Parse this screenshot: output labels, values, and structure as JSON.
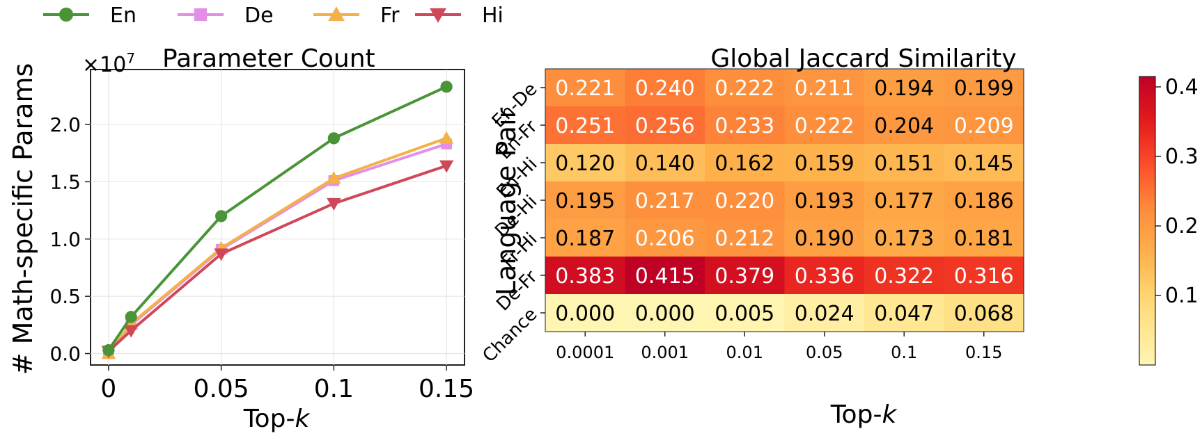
{
  "legend": {
    "items": [
      {
        "label": "En",
        "color": "#4a9438",
        "marker": "circle"
      },
      {
        "label": "De",
        "color": "#e38fe6",
        "marker": "square"
      },
      {
        "label": "Fr",
        "color": "#f4b14a",
        "marker": "triangle-up"
      },
      {
        "label": "Hi",
        "color": "#cf4859",
        "marker": "triangle-down"
      }
    ],
    "placement": "top-left"
  },
  "chart_data": [
    {
      "type": "line",
      "title": "Parameter Count",
      "xlabel_main": "Top-",
      "xlabel_var": "k",
      "ylabel": "# Math-specific Params",
      "y_multiplier_base": "×10",
      "y_multiplier_exp": "7",
      "x": [
        0,
        0.01,
        0.05,
        0.1,
        0.15
      ],
      "xticks": [
        0,
        0.05,
        0.1,
        0.15
      ],
      "xtick_labels": [
        "0",
        "0.05",
        "0.1",
        "0.15"
      ],
      "yticks": [
        0,
        0.5,
        1.0,
        1.5,
        2.0
      ],
      "ytick_labels": [
        "0.0",
        "0.5",
        "1.0",
        "1.5",
        "2.0"
      ],
      "xlim": [
        -0.008,
        0.158
      ],
      "ylim": [
        -0.1,
        2.48
      ],
      "grid": true,
      "series": [
        {
          "name": "De",
          "color": "#e38fe6",
          "marker": "square",
          "values": [
            0.0,
            0.25,
            0.91,
            1.51,
            1.83
          ]
        },
        {
          "name": "Fr",
          "color": "#f4b14a",
          "marker": "triangle-up",
          "values": [
            0.0,
            0.26,
            0.92,
            1.53,
            1.88
          ]
        },
        {
          "name": "Hi",
          "color": "#cf4859",
          "marker": "triangle-down",
          "values": [
            0.02,
            0.2,
            0.87,
            1.31,
            1.64
          ]
        },
        {
          "name": "En",
          "color": "#4a9438",
          "marker": "circle",
          "values": [
            0.03,
            0.32,
            1.2,
            1.88,
            2.33
          ]
        }
      ]
    },
    {
      "type": "heatmap",
      "title": "Global Jaccard Similarity",
      "xlabel_main": "Top-",
      "xlabel_var": "k",
      "ylabel": "Language Pair",
      "x_categories": [
        "0.0001",
        "0.001",
        "0.01",
        "0.05",
        "0.1",
        "0.15"
      ],
      "y_categories": [
        "En-De",
        "En-Fr",
        "En-Hi",
        "De-Hi",
        "Fr-Hi",
        "De-Fr",
        "Chance"
      ],
      "values": [
        [
          0.221,
          0.24,
          0.222,
          0.211,
          0.194,
          0.199
        ],
        [
          0.251,
          0.256,
          0.233,
          0.222,
          0.204,
          0.209
        ],
        [
          0.12,
          0.14,
          0.162,
          0.159,
          0.151,
          0.145
        ],
        [
          0.195,
          0.217,
          0.22,
          0.193,
          0.177,
          0.186
        ],
        [
          0.187,
          0.206,
          0.212,
          0.19,
          0.173,
          0.181
        ],
        [
          0.383,
          0.415,
          0.379,
          0.336,
          0.322,
          0.316
        ],
        [
          0.0,
          0.0,
          0.005,
          0.024,
          0.047,
          0.068
        ]
      ],
      "value_labels": [
        [
          "0.221",
          "0.240",
          "0.222",
          "0.211",
          "0.194",
          "0.199"
        ],
        [
          "0.251",
          "0.256",
          "0.233",
          "0.222",
          "0.204",
          "0.209"
        ],
        [
          "0.120",
          "0.140",
          "0.162",
          "0.159",
          "0.151",
          "0.145"
        ],
        [
          "0.195",
          "0.217",
          "0.220",
          "0.193",
          "0.177",
          "0.186"
        ],
        [
          "0.187",
          "0.206",
          "0.212",
          "0.190",
          "0.173",
          "0.181"
        ],
        [
          "0.383",
          "0.415",
          "0.379",
          "0.336",
          "0.322",
          "0.316"
        ],
        [
          "0.000",
          "0.000",
          "0.005",
          "0.024",
          "0.047",
          "0.068"
        ]
      ],
      "colormap": "YlOrRd",
      "vmin": 0,
      "vmax": 0.415,
      "colorbar_ticks": [
        0.1,
        0.2,
        0.3,
        0.4
      ],
      "colorbar_tick_labels": [
        "0.1",
        "0.2",
        "0.3",
        "0.4"
      ]
    }
  ]
}
